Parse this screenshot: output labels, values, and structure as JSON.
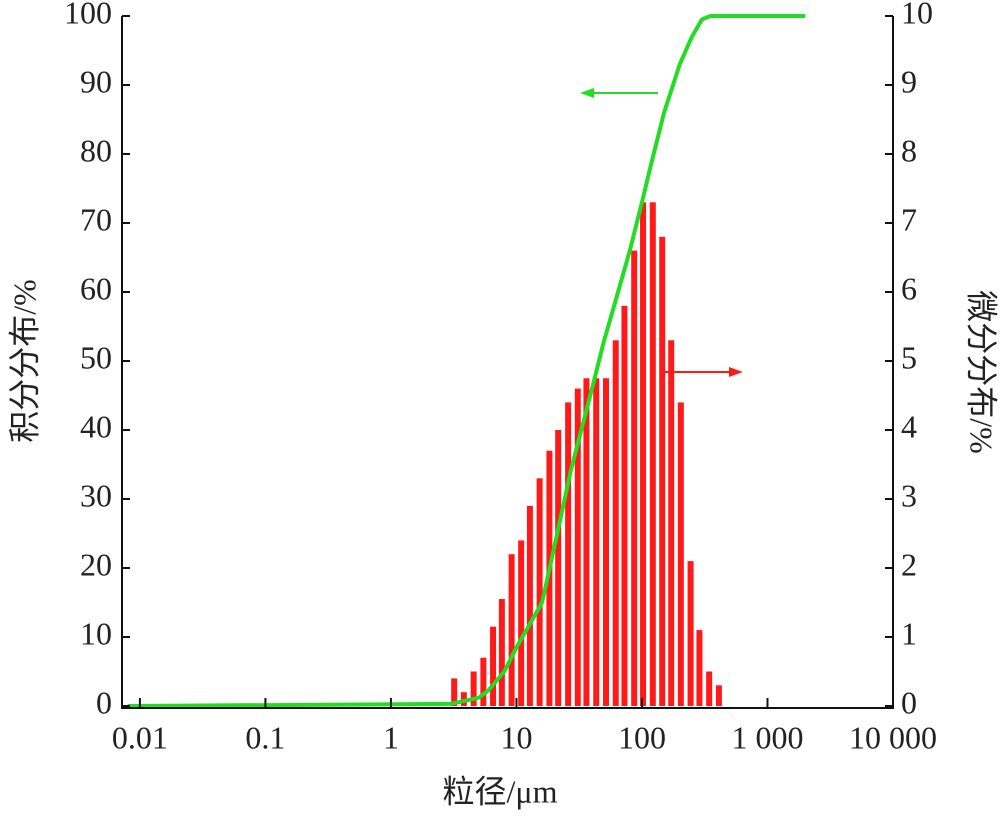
{
  "chart_data": {
    "type": "bar-line",
    "x_label": "粒径/μm",
    "y_label": "积分分布/%",
    "y2_label": "微分分布/%",
    "xscale": "log",
    "xlim": [
      0.0072,
      10000
    ],
    "xticks": [
      0.01,
      0.1,
      1,
      10,
      100,
      {
        "value": 1000,
        "label": "1 000"
      },
      {
        "value": 10000,
        "label": "10 000"
      }
    ],
    "ylim": [
      0,
      100
    ],
    "yticks": [
      0,
      10,
      20,
      30,
      40,
      50,
      60,
      70,
      80,
      90,
      100
    ],
    "y2lim": [
      0,
      10
    ],
    "y2ticks": [
      0,
      1,
      2,
      3,
      4,
      5,
      6,
      7,
      8,
      9,
      10
    ],
    "grid": false,
    "series": [
      {
        "type": "bar",
        "axis": "y2",
        "color": "#ff1a1a",
        "x": [
          3.19,
          3.81,
          4.56,
          5.45,
          6.51,
          7.65,
          9.15,
          10.9,
          12.8,
          15.3,
          18.3,
          21.5,
          25.8,
          30.8,
          36.1,
          43.2,
          51.7,
          61.8,
          72.5,
          86.7,
          102,
          122,
          145,
          171,
          204,
          244,
          287,
          343,
          410
        ],
        "values": [
          0.4,
          0.2,
          0.5,
          0.7,
          1.15,
          1.55,
          2.2,
          2.4,
          2.9,
          3.3,
          3.7,
          4.0,
          4.4,
          4.6,
          4.75,
          4.75,
          4.75,
          5.3,
          5.8,
          6.6,
          7.3,
          7.3,
          6.8,
          5.3,
          4.4,
          2.1,
          1.1,
          0.5,
          0.3
        ]
      },
      {
        "type": "line",
        "color": "#22dd22",
        "x": [
          0.008,
          3,
          4,
          5,
          6,
          8,
          10,
          12,
          16,
          20,
          27,
          40,
          50,
          60,
          80,
          100,
          120,
          150,
          200,
          250,
          300,
          350,
          2000
        ],
        "values": [
          0,
          0.3,
          0.8,
          1.2,
          2.3,
          5,
          8.5,
          11,
          15,
          23,
          34,
          46,
          53,
          58,
          66,
          73,
          79,
          86,
          93,
          97,
          99.5,
          100,
          100
        ]
      }
    ]
  }
}
